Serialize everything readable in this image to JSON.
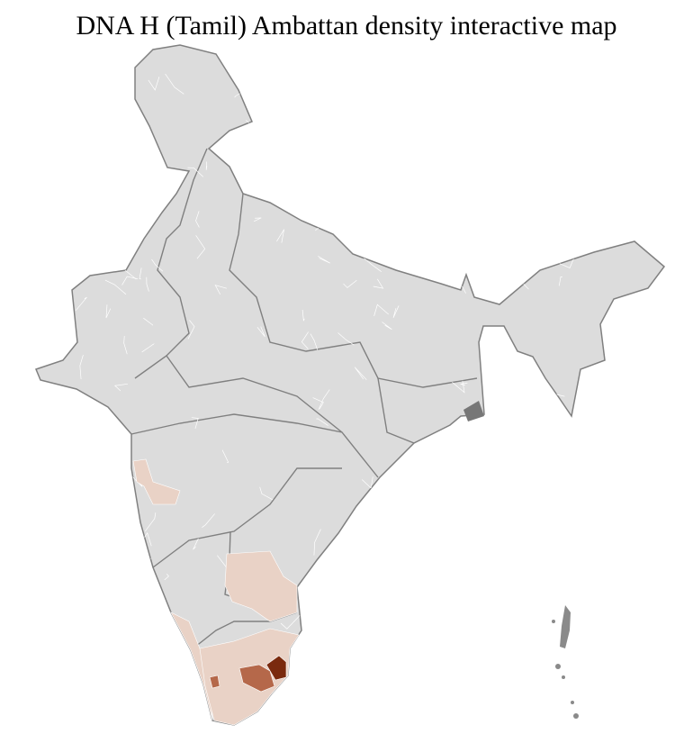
{
  "title": "DNA H (Tamil) Ambattan density interactive map",
  "colors": {
    "base_fill": "#dcdcdc",
    "district_border": "#ffffff",
    "state_border": "#808080",
    "low_density": "#e9d2c6",
    "medium_density": "#b5684a",
    "high_density": "#7a2a0e",
    "no_data": "#7f7f7f"
  }
}
